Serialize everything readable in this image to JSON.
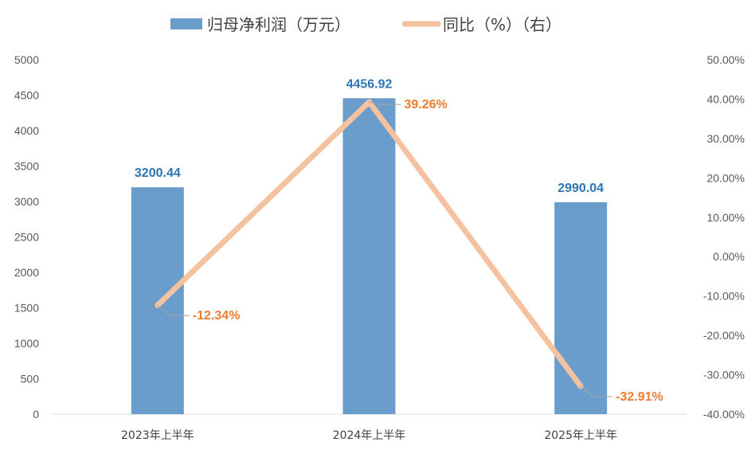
{
  "chart_data": {
    "type": "bar",
    "categories": [
      "2023年上半年",
      "2024年上半年",
      "2025年上半年"
    ],
    "series": [
      {
        "name": "归母净利润（万元）",
        "type": "bar",
        "axis": "left",
        "values": [
          3200.44,
          4456.92,
          2990.04
        ],
        "labels": [
          "3200.44",
          "4456.92",
          "2990.04"
        ]
      },
      {
        "name": "同比（%）（右）",
        "type": "line",
        "axis": "right",
        "values": [
          -12.34,
          39.26,
          -32.91
        ],
        "labels": [
          "-12.34%",
          "39.26%",
          "-32.91%"
        ]
      }
    ],
    "y_left": {
      "min": 0,
      "max": 5000,
      "step": 500,
      "tick_labels": [
        "0",
        "500",
        "1000",
        "1500",
        "2000",
        "2500",
        "3000",
        "3500",
        "4000",
        "4500",
        "5000"
      ]
    },
    "y_right": {
      "min": -40,
      "max": 50,
      "step": 10,
      "tick_labels": [
        "-40.00%",
        "-30.00%",
        "-20.00%",
        "-10.00%",
        "0.00%",
        "10.00%",
        "20.00%",
        "30.00%",
        "40.00%",
        "50.00%"
      ]
    },
    "legend_position": "top",
    "grid": false,
    "colors": {
      "bar": "#6A9DCB",
      "line": "#F5C2A0",
      "bar_label": "#2E75B6",
      "line_label": "#ED7D31",
      "leader": "#A6A6A6",
      "axis_text": "#595959"
    }
  }
}
